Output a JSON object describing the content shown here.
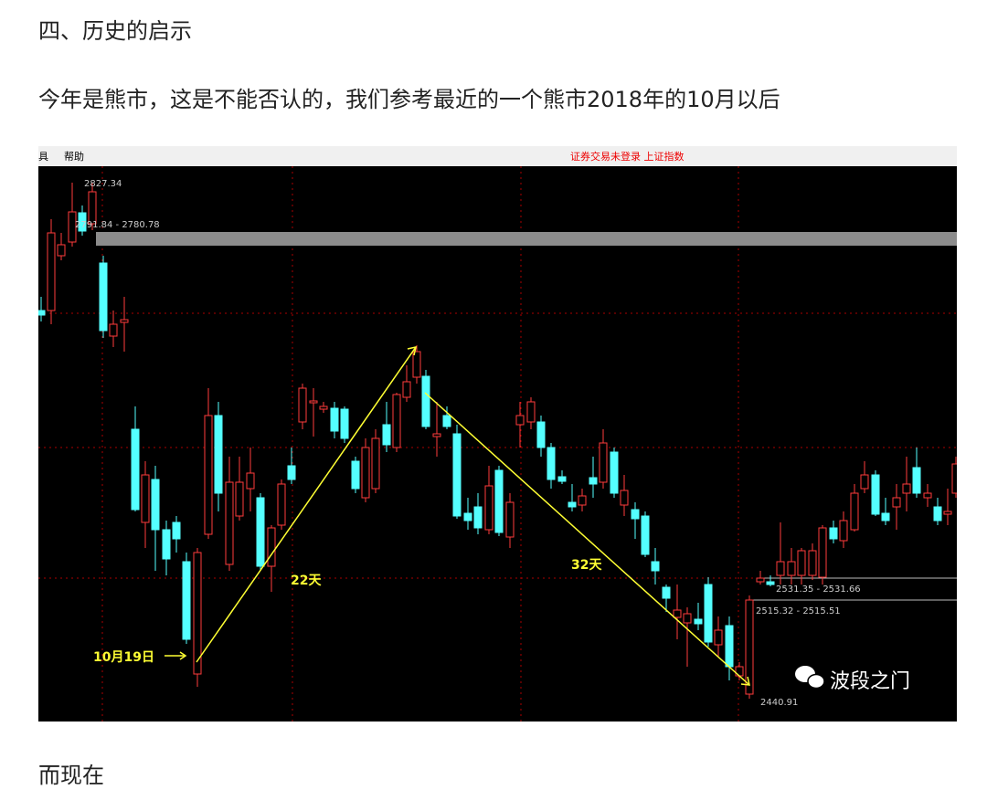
{
  "heading": "四、历史的启示",
  "paragraph": "今年是熊市，这是不能否认的，我们参考最近的一个熊市2018年的10月以后",
  "screenshot": {
    "menu": [
      "具",
      "帮助"
    ],
    "status": "证券交易未登录 上证指数",
    "labels": {
      "high": "2827.34",
      "band": "2791.84 - 2780.78",
      "rise_days": "22天",
      "fall_days": "32天",
      "start_date": "10月19日",
      "level_1": "2531.35 - 2531.66",
      "level_2": "2515.32 - 2515.51",
      "low": "2440.91"
    },
    "watermark": "波段之门"
  },
  "footer": "而现在"
}
